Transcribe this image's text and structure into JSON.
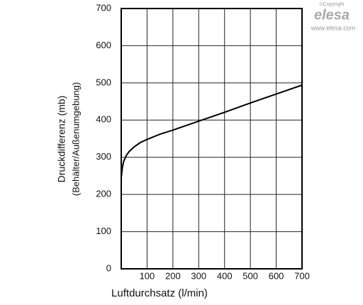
{
  "chart_data": {
    "type": "line",
    "xlabel": "Luftdurchsatz (l/min)",
    "ylabel": [
      "Druckdifferenz (mb)",
      "(Behälter/Außenumgebung)"
    ],
    "x": [
      0,
      5,
      10,
      20,
      30,
      50,
      75,
      100,
      150,
      200,
      300,
      400,
      500,
      600,
      700
    ],
    "series": [
      {
        "color": "#000000",
        "values": [
          245,
          275,
          290,
          305,
          315,
          328,
          340,
          348,
          362,
          373,
          397,
          421,
          446,
          470,
          494
        ]
      }
    ],
    "xlim": [
      0,
      700
    ],
    "xticks": [
      100,
      200,
      300,
      400,
      500,
      600,
      700
    ],
    "ylim": [
      0,
      700
    ],
    "yticks": [
      0,
      100,
      200,
      300,
      400,
      500,
      600,
      700
    ],
    "grid": true,
    "logo": {
      "copyright": "©Copyright",
      "brand": "elesa",
      "url": "www.elesa.com"
    }
  }
}
